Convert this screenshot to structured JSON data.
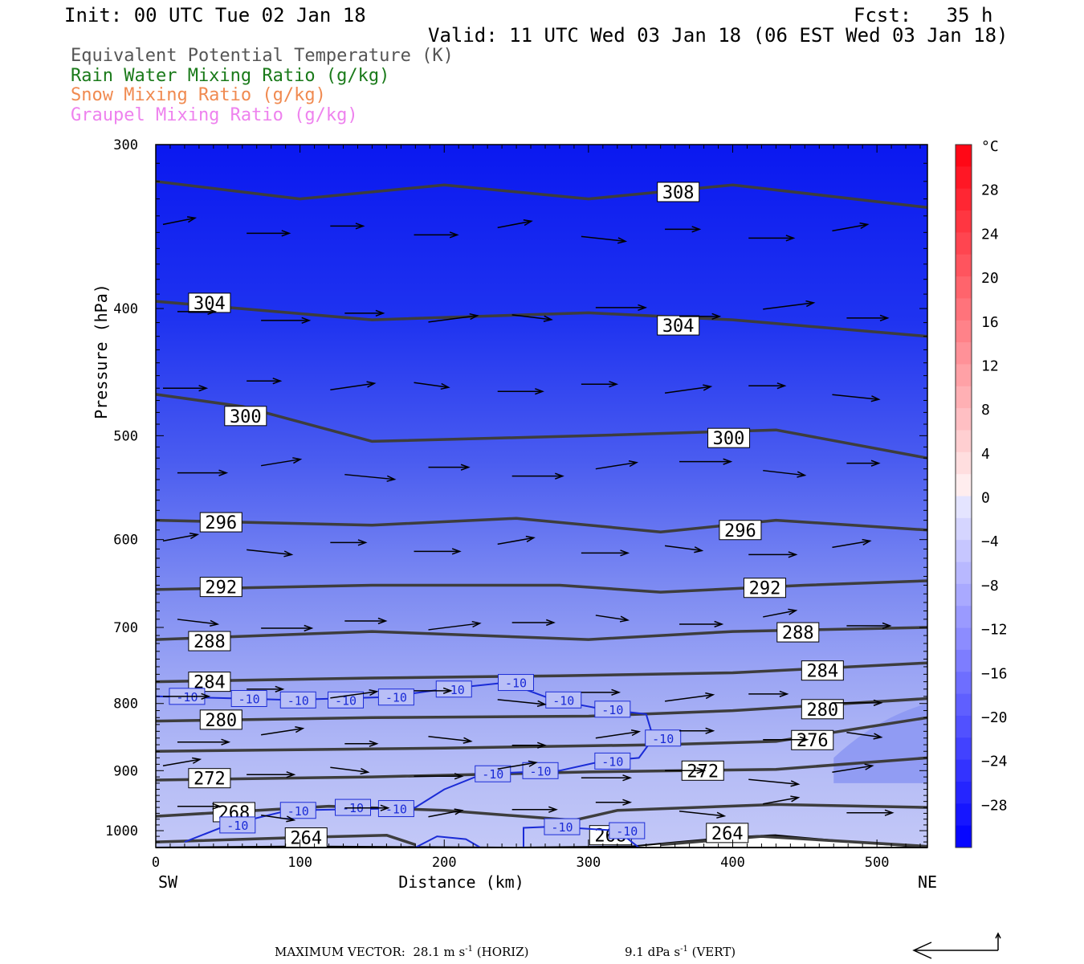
{
  "header": {
    "init": "Init: 00 UTC Tue 02 Jan 18",
    "fcst": "Fcst:   35 h",
    "valid": "Valid: 11 UTC Wed 03 Jan 18 (06 EST Wed 03 Jan 18)"
  },
  "legend": [
    {
      "label": "Equivalent Potential Temperature (K)",
      "color": "#555555"
    },
    {
      "label": "Rain Water Mixing Ratio (g/kg)",
      "color": "#1a7a1a"
    },
    {
      "label": "Snow Mixing Ratio (g/kg)",
      "color": "#f08a50"
    },
    {
      "label": "Graupel Mixing Ratio (g/kg)",
      "color": "#ee82ee"
    }
  ],
  "chart_data": {
    "type": "cross-section",
    "xlabel": "Distance (km)",
    "ylabel": "Pressure (hPa)",
    "xlim": [
      0,
      535
    ],
    "ylim": [
      1030,
      300
    ],
    "y_scale": "log-pressure",
    "x_ticks": [
      "0",
      "100",
      "200",
      "300",
      "400",
      "500"
    ],
    "y_ticks": [
      "300",
      "400",
      "500",
      "600",
      "700",
      "800",
      "900",
      "1000"
    ],
    "x_end_labels": {
      "left": "SW",
      "right": "NE"
    },
    "colorbar": {
      "unit": "°C",
      "ticks": [
        "28",
        "24",
        "20",
        "16",
        "12",
        "8",
        "4",
        "0",
        "-4",
        "-8",
        "-12",
        "-16",
        "-20",
        "-24",
        "-28"
      ],
      "range": [
        -32,
        32
      ]
    },
    "theta_e_contours": [
      {
        "label": "308",
        "pts": [
          [
            0,
            320
          ],
          [
            100,
            330
          ],
          [
            200,
            322
          ],
          [
            300,
            330
          ],
          [
            400,
            322
          ],
          [
            535,
            335
          ]
        ],
        "label_at": [
          350,
          326
        ]
      },
      {
        "label": "304",
        "pts": [
          [
            0,
            395
          ],
          [
            150,
            408
          ],
          [
            300,
            403
          ],
          [
            400,
            408
          ],
          [
            535,
            420
          ]
        ],
        "label_at": [
          25,
          396
        ]
      },
      {
        "label": "304",
        "pts": [],
        "label_at": [
          350,
          412
        ]
      },
      {
        "label": "300",
        "pts": [
          [
            0,
            465
          ],
          [
            60,
            475
          ],
          [
            150,
            505
          ],
          [
            300,
            500
          ],
          [
            430,
            495
          ],
          [
            535,
            520
          ]
        ],
        "label_at": [
          50,
          483
        ]
      },
      {
        "label": "300",
        "pts": [],
        "label_at": [
          385,
          502
        ]
      },
      {
        "label": "296",
        "pts": [
          [
            0,
            580
          ],
          [
            150,
            585
          ],
          [
            250,
            578
          ],
          [
            350,
            592
          ],
          [
            430,
            580
          ],
          [
            535,
            590
          ]
        ],
        "label_at": [
          33,
          582
        ]
      },
      {
        "label": "296",
        "pts": [],
        "label_at": [
          393,
          590
        ]
      },
      {
        "label": "292",
        "pts": [
          [
            0,
            655
          ],
          [
            150,
            650
          ],
          [
            280,
            650
          ],
          [
            350,
            658
          ],
          [
            450,
            650
          ],
          [
            535,
            645
          ]
        ],
        "label_at": [
          33,
          652
        ]
      },
      {
        "label": "292",
        "pts": [],
        "label_at": [
          410,
          653
        ]
      },
      {
        "label": "288",
        "pts": [
          [
            0,
            715
          ],
          [
            150,
            705
          ],
          [
            300,
            715
          ],
          [
            400,
            705
          ],
          [
            535,
            700
          ]
        ],
        "label_at": [
          25,
          717
        ]
      },
      {
        "label": "288",
        "pts": [],
        "label_at": [
          433,
          706
        ]
      },
      {
        "label": "284",
        "pts": [
          [
            0,
            770
          ],
          [
            150,
            765
          ],
          [
            280,
            762
          ],
          [
            400,
            758
          ],
          [
            535,
            745
          ]
        ],
        "label_at": [
          25,
          770
        ]
      },
      {
        "label": "284",
        "pts": [],
        "label_at": [
          450,
          755
        ]
      },
      {
        "label": "280",
        "pts": [
          [
            0,
            825
          ],
          [
            150,
            820
          ],
          [
            300,
            818
          ],
          [
            400,
            810
          ],
          [
            535,
            793
          ]
        ],
        "label_at": [
          33,
          823
        ]
      },
      {
        "label": "280",
        "pts": [],
        "label_at": [
          450,
          808
        ]
      },
      {
        "label": "276",
        "pts": [
          [
            0,
            870
          ],
          [
            200,
            865
          ],
          [
            350,
            860
          ],
          [
            430,
            855
          ],
          [
            535,
            820
          ]
        ],
        "label_at": [
          443,
          853
        ]
      },
      {
        "label": "272",
        "pts": [
          [
            0,
            915
          ],
          [
            150,
            910
          ],
          [
            300,
            902
          ],
          [
            430,
            898
          ],
          [
            535,
            880
          ]
        ],
        "label_at": [
          25,
          912
        ]
      },
      {
        "label": "272",
        "pts": [],
        "label_at": [
          367,
          900
        ]
      },
      {
        "label": "268",
        "pts": [
          [
            0,
            975
          ],
          [
            120,
            958
          ],
          [
            200,
            965
          ],
          [
            290,
            982
          ],
          [
            320,
            965
          ],
          [
            430,
            955
          ],
          [
            535,
            960
          ]
        ],
        "label_at": [
          42,
          968
        ]
      },
      {
        "label": "268",
        "pts": [],
        "label_at": [
          303,
          1008
        ]
      },
      {
        "label": "264",
        "pts": [
          [
            0,
            1020
          ],
          [
            100,
            1012
          ],
          [
            160,
            1008
          ],
          [
            180,
            1025
          ]
        ],
        "label_at": [
          92,
          1012
        ]
      },
      {
        "label": "264",
        "pts": [
          [
            350,
            1025
          ],
          [
            420,
            1010
          ],
          [
            535,
            1028
          ]
        ],
        "label_at": [
          384,
          1004
        ]
      }
    ],
    "isotherm_labels": [
      {
        "label": "-10",
        "at": [
          15,
          790
        ]
      },
      {
        "label": "-10",
        "at": [
          58,
          793
        ]
      },
      {
        "label": "-10",
        "at": [
          92,
          795
        ]
      },
      {
        "label": "-10",
        "at": [
          125,
          795
        ]
      },
      {
        "label": "-10",
        "at": [
          160,
          791
        ]
      },
      {
        "label": "-10",
        "at": [
          200,
          780
        ]
      },
      {
        "label": "-10",
        "at": [
          243,
          771
        ]
      },
      {
        "label": "-10",
        "at": [
          276,
          795
        ]
      },
      {
        "label": "-10",
        "at": [
          310,
          808
        ]
      },
      {
        "label": "-10",
        "at": [
          345,
          850
        ]
      },
      {
        "label": "-10",
        "at": [
          310,
          885
        ]
      },
      {
        "label": "-10",
        "at": [
          260,
          900
        ]
      },
      {
        "label": "-10",
        "at": [
          227,
          905
        ]
      },
      {
        "label": "-10",
        "at": [
          92,
          965
        ]
      },
      {
        "label": "-10",
        "at": [
          130,
          960
        ]
      },
      {
        "label": "-10",
        "at": [
          160,
          962
        ]
      },
      {
        "label": "-10",
        "at": [
          50,
          990
        ]
      },
      {
        "label": "-10",
        "at": [
          275,
          993
        ]
      },
      {
        "label": "-10",
        "at": [
          320,
          1000
        ]
      }
    ]
  },
  "footer": {
    "max_vector_label": "MAXIMUM VECTOR:",
    "horiz": "28.1 m s",
    "horiz_unit": "(HORIZ)",
    "vert": "9.1 dPa s",
    "vert_unit": "(VERT)",
    "exp": "-1"
  }
}
